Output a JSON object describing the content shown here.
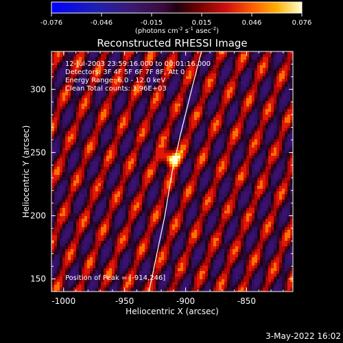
{
  "colorbar": {
    "ticks": [
      "-0.076",
      "-0.046",
      "-0.015",
      "0.015",
      "0.046",
      "0.076"
    ],
    "units_prefix": "(photons cm",
    "units_exp1": "-2",
    "units_mid": " s",
    "units_exp2": "-1",
    "units_suffix": " asec",
    "units_exp3": "-2",
    "units_end": ")"
  },
  "info": {
    "line1": "12-Jul-2003 23:59:16.000 to 00:01:16.000",
    "line2": "Detectors: 3F 4F 5F 6F 7F 8F, Att 0",
    "line3": "Energy Range: 6.0 - 12.0 keV",
    "line4": "Clean     Total counts: 3.96E+03",
    "peak": "Position of Peak = [-914,246]"
  },
  "footer": {
    "date": "3-May-2022 16:02"
  },
  "colors": {
    "background": "#000000",
    "limb": "#ffffff",
    "text": "#ffffff"
  },
  "chart_data": {
    "type": "heatmap",
    "title": "Reconstructed RHESSI Image",
    "xlabel": "Heliocentric X (arcsec)",
    "ylabel": "Heliocentric Y (arcsec)",
    "xlim": [
      -1010,
      -812
    ],
    "ylim": [
      140,
      330
    ],
    "xticks": [
      -1000,
      -950,
      -900,
      -850
    ],
    "yticks": [
      150,
      200,
      250,
      300
    ],
    "color_range": [
      -0.076,
      0.076
    ],
    "peak": {
      "x": -914,
      "y": 246
    },
    "limb": [
      [
        -930,
        140
      ],
      [
        -917,
        200
      ],
      [
        -911,
        235
      ],
      [
        -904,
        265
      ],
      [
        -895,
        300
      ],
      [
        -887,
        330
      ]
    ]
  }
}
